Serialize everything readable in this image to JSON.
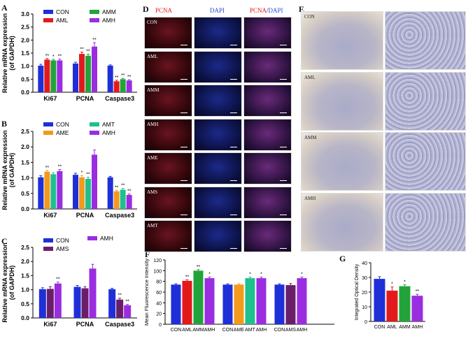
{
  "panel_letters": {
    "a": "A",
    "b": "B",
    "c": "C",
    "d": "D",
    "e": "E",
    "f": "F",
    "g": "G"
  },
  "colors": {
    "con": "#1f2fd8",
    "aml": "#e31a1c",
    "amm": "#22a33a",
    "amh": "#9b2de0",
    "ame": "#f39a1d",
    "amt": "#1fbf8f",
    "ams": "#6a1e6a"
  },
  "panel_d": {
    "headers": {
      "pcna": "PCNA",
      "dapi": "DAPI",
      "merge_pcna": "PCNA",
      "merge_sep": "/",
      "merge_dapi": "DAPI"
    },
    "rows": [
      "CON",
      "AML",
      "AMM",
      "AMH",
      "AME",
      "AMS",
      "AMT"
    ]
  },
  "panel_e": {
    "rows": [
      "CON",
      "AML",
      "AMM",
      "AMH"
    ]
  },
  "chart_data": [
    {
      "id": "A",
      "type": "bar",
      "ylabel": "Relative mRNA expression\n(of GAPDH)",
      "ylim": [
        0,
        3.0
      ],
      "yticks": [
        "0.0",
        "0.5",
        "1.0",
        "1.5",
        "2.0",
        "2.5",
        "3.0"
      ],
      "categories": [
        "Ki67",
        "PCNA",
        "Caspase3"
      ],
      "legend": [
        "CON",
        "AML",
        "AMM",
        "AMH"
      ],
      "series": [
        {
          "name": "CON",
          "values": [
            1.02,
            1.1,
            1.02
          ],
          "err": [
            0.05,
            0.05,
            0.03
          ]
        },
        {
          "name": "AML",
          "values": [
            1.25,
            1.47,
            0.42
          ],
          "err": [
            0.04,
            0.07,
            0.04
          ]
        },
        {
          "name": "AMM",
          "values": [
            1.22,
            1.4,
            0.5
          ],
          "err": [
            0.04,
            0.06,
            0.03
          ]
        },
        {
          "name": "AMH",
          "values": [
            1.22,
            1.75,
            0.45
          ],
          "err": [
            0.05,
            0.15,
            0.03
          ]
        }
      ],
      "sig": [
        [
          "",
          "**",
          "*",
          "**"
        ],
        [
          "",
          "**",
          "**",
          "**"
        ],
        [
          "",
          "**",
          "**",
          "**"
        ]
      ]
    },
    {
      "id": "B",
      "type": "bar",
      "ylabel": "Relative mRNA expression\n(of GAPDH)",
      "ylim": [
        0,
        2.5
      ],
      "yticks": [
        "0.0",
        "0.5",
        "1.0",
        "1.5",
        "2.0",
        "2.5"
      ],
      "categories": [
        "Ki67",
        "PCNA",
        "Caspase3"
      ],
      "legend": [
        "CON",
        "AME",
        "AMT",
        "AMH"
      ],
      "series": [
        {
          "name": "CON",
          "values": [
            1.02,
            1.1,
            1.02
          ],
          "err": [
            0.05,
            0.05,
            0.03
          ]
        },
        {
          "name": "AME",
          "values": [
            1.2,
            1.02,
            0.57
          ],
          "err": [
            0.04,
            0.06,
            0.03
          ]
        },
        {
          "name": "AMT",
          "values": [
            1.12,
            0.97,
            0.62
          ],
          "err": [
            0.05,
            0.05,
            0.04
          ]
        },
        {
          "name": "AMH",
          "values": [
            1.22,
            1.75,
            0.45
          ],
          "err": [
            0.05,
            0.15,
            0.03
          ]
        }
      ],
      "sig": [
        [
          "",
          "**",
          "",
          "**"
        ],
        [
          "",
          "*",
          "**",
          ""
        ],
        [
          "",
          "**",
          "**",
          "**"
        ]
      ]
    },
    {
      "id": "C",
      "type": "bar",
      "ylabel": "Relative mRNA expression\n(of GAPDH)",
      "ylim": [
        0,
        2.5
      ],
      "yticks": [
        "0.0",
        "0.5",
        "1.0",
        "1.5",
        "2.0",
        "2.5"
      ],
      "categories": [
        "Ki67",
        "PCNA",
        "Caspase3"
      ],
      "legend": [
        "CON",
        "AMS",
        "AMH"
      ],
      "series": [
        {
          "name": "CON",
          "values": [
            1.02,
            1.1,
            1.02
          ],
          "err": [
            0.05,
            0.05,
            0.03
          ]
        },
        {
          "name": "AMS",
          "values": [
            1.03,
            1.05,
            0.65
          ],
          "err": [
            0.08,
            0.06,
            0.05
          ]
        },
        {
          "name": "AMH",
          "values": [
            1.22,
            1.75,
            0.45
          ],
          "err": [
            0.05,
            0.15,
            0.03
          ]
        }
      ],
      "sig": [
        [
          "",
          "",
          "**"
        ],
        [
          "",
          "",
          ""
        ],
        [
          "",
          "**",
          "**"
        ]
      ]
    },
    {
      "id": "F",
      "type": "bar",
      "ylabel": "Mean Fluorescence Intensity",
      "ylim": [
        0,
        120
      ],
      "yticks": [
        "0",
        "20",
        "40",
        "60",
        "80",
        "100",
        "120"
      ],
      "groups": [
        {
          "labels": [
            "CON",
            "AML",
            "AMM",
            "AMH"
          ],
          "values": [
            74,
            81,
            100,
            86
          ],
          "err": [
            1.5,
            2,
            2,
            2
          ],
          "colors": [
            "con",
            "aml",
            "amm",
            "amh"
          ],
          "sig": [
            "",
            "**",
            "**",
            "*"
          ]
        },
        {
          "labels": [
            "CON",
            "AME",
            "AMT",
            "AMH"
          ],
          "values": [
            74,
            74,
            86,
            86
          ],
          "err": [
            1.5,
            1.5,
            2,
            2
          ],
          "colors": [
            "con",
            "ame",
            "amt",
            "amh"
          ],
          "sig": [
            "",
            "",
            "*",
            "*"
          ]
        },
        {
          "labels": [
            "CON",
            "AMS",
            "AMH"
          ],
          "values": [
            74,
            73,
            86
          ],
          "err": [
            1.5,
            3,
            2
          ],
          "colors": [
            "con",
            "ams",
            "amh"
          ],
          "sig": [
            "",
            "",
            "*"
          ]
        }
      ]
    },
    {
      "id": "G",
      "type": "bar",
      "ylabel": "Integrated Optical Density",
      "ylim": [
        0,
        40
      ],
      "yticks": [
        "0",
        "10",
        "20",
        "30",
        "40"
      ],
      "categories": [
        "CON",
        "AML",
        "AMM",
        "AMH"
      ],
      "values": [
        29,
        21,
        24,
        17.5
      ],
      "err": [
        1.5,
        2.5,
        1,
        1
      ],
      "colors": [
        "con",
        "aml",
        "amm",
        "amh"
      ],
      "sig": [
        "",
        "*",
        "*",
        "**"
      ]
    }
  ]
}
